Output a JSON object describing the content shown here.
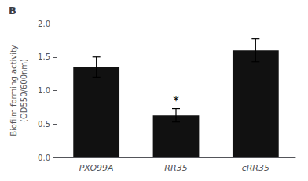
{
  "chart_data": {
    "type": "bar",
    "title": "B",
    "categories": [
      "PXO99A",
      "RR35",
      "cRR35"
    ],
    "values": [
      1.35,
      0.63,
      1.6
    ],
    "errors": [
      0.15,
      0.1,
      0.17
    ],
    "color": "#111111",
    "ylabel": "Biofilm forming activity\n(OD550/600nm)",
    "ylim": [
      0,
      2.0
    ],
    "yticks": [
      {
        "value": 0,
        "label": "0.0"
      },
      0.5,
      {
        "value": 1,
        "label": "1.0"
      },
      1.5,
      {
        "value": 2,
        "label": "2.0"
      }
    ],
    "grid": false,
    "annotations": [
      {
        "text": "*",
        "category": "RR35"
      }
    ]
  }
}
